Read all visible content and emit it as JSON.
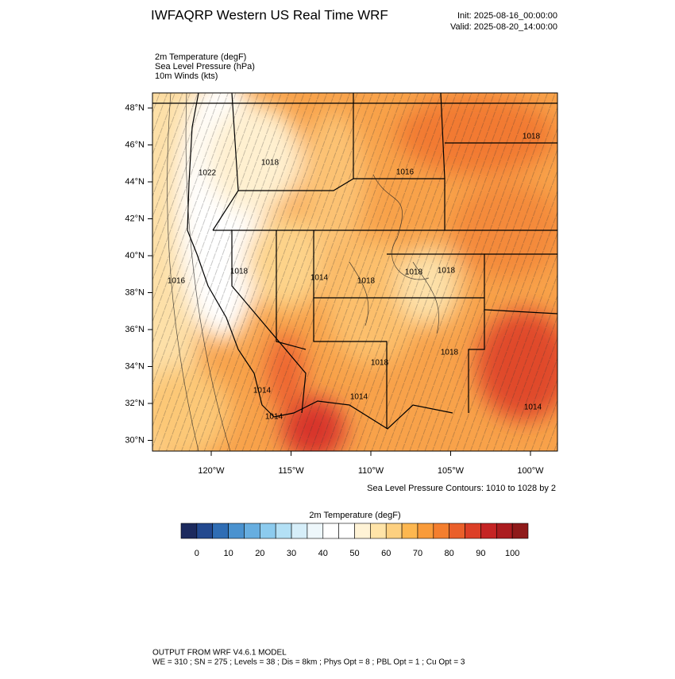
{
  "header": {
    "title": "IWFAQRP Western US Real Time WRF",
    "init": "Init: 2025-08-16_00:00:00",
    "valid": "Valid: 2025-08-20_14:00:00"
  },
  "fields": [
    "2m Temperature   (degF)",
    "Sea Level Pressure   (hPa)",
    "10m Winds   (kts)"
  ],
  "map": {
    "lat_labels": [
      "48°N",
      "46°N",
      "44°N",
      "42°N",
      "40°N",
      "38°N",
      "36°N",
      "34°N",
      "32°N",
      "30°N"
    ],
    "lon_labels": [
      "120°W",
      "115°W",
      "110°W",
      "105°W",
      "100°W"
    ],
    "contour_labels": [
      1022,
      1018,
      1016,
      1018,
      1016,
      1018,
      1014,
      1018,
      1018,
      1018,
      1018,
      1014,
      1014,
      1018,
      1014,
      1014
    ],
    "contour_note": "Sea Level Pressure Contours: 1010 to 1028 by 2"
  },
  "colorbar": {
    "title": "2m Temperature  (degF)",
    "colors": [
      "#1c2a5e",
      "#23498f",
      "#2f6db4",
      "#4a92cf",
      "#67aee0",
      "#8ccbee",
      "#b3e0f5",
      "#d6eef9",
      "#eef7fb",
      "#ffffff",
      "#ffffff",
      "#fff3d6",
      "#ffe4a8",
      "#fdd080",
      "#fdb750",
      "#f99b3a",
      "#f47e2e",
      "#ea5f2a",
      "#dc3f27",
      "#c52424",
      "#ab1c1f",
      "#8f1a1a"
    ],
    "ticks": [
      0,
      10,
      20,
      30,
      40,
      50,
      60,
      70,
      80,
      90,
      100
    ]
  },
  "footer": {
    "line1": "OUTPUT FROM WRF V4.6.1 MODEL",
    "line2": "WE = 310 ; SN = 275 ; Levels = 38 ; Dis = 8km ; Phys Opt = 8 ; PBL Opt = 1 ; Cu Opt = 3"
  }
}
